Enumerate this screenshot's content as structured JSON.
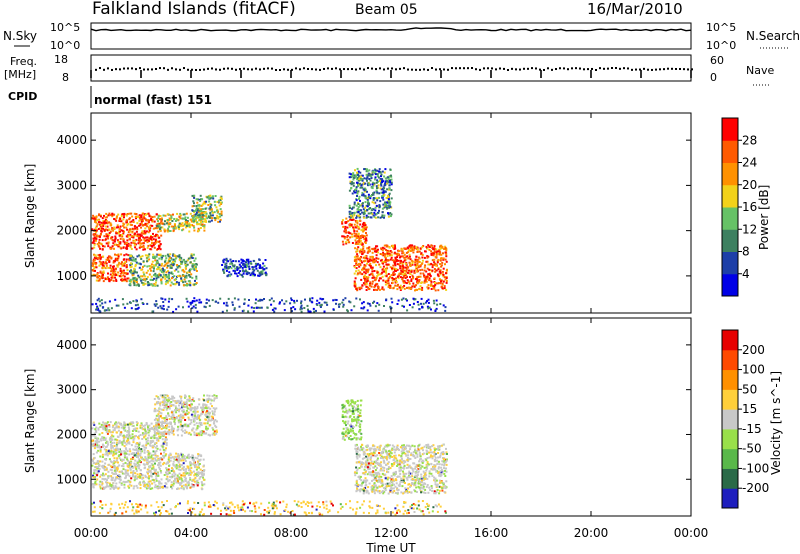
{
  "header": {
    "site": "Falkland Islands (fitACF)",
    "beam": "Beam 05",
    "date": "16/Mar/2010"
  },
  "top_panels": {
    "nsky_label": "N.Sky",
    "nsky_ticks": [
      "10^5",
      "10^0"
    ],
    "nsearch_label": "N.Search",
    "nsearch_ticks": [
      "10^5",
      "10^0"
    ],
    "freq_label_1": "Freq.",
    "freq_label_2": "[MHz]",
    "freq_ticks": [
      "18",
      "8"
    ],
    "nave_label": "Nave",
    "nave_ticks": [
      "60",
      "0"
    ],
    "cpid_label": "CPID",
    "cpid_text": "normal (fast) 151"
  },
  "chart_data": [
    {
      "type": "heatmap",
      "name": "power",
      "ylabel": "Slant Range [km]",
      "ylim": [
        180,
        4600
      ],
      "yticks": [
        1000,
        2000,
        3000,
        4000
      ],
      "xlim": [
        0,
        24
      ],
      "colorbar_label": "Power [dB]",
      "colorbar_ticks": [
        "4",
        "8",
        "12",
        "16",
        "20",
        "24",
        "28"
      ],
      "colors": [
        "#0000e6",
        "#1d3fa8",
        "#3d8060",
        "#66c266",
        "#f2d21a",
        "#ff9100",
        "#ff5a00",
        "#ff0000"
      ],
      "regions": [
        {
          "t": [
            0.0,
            2.8
          ],
          "r": [
            1600,
            2400
          ],
          "level": 6
        },
        {
          "t": [
            0.0,
            1.5
          ],
          "r": [
            900,
            1500
          ],
          "level": 6
        },
        {
          "t": [
            1.5,
            4.2
          ],
          "r": [
            800,
            1500
          ],
          "level": 3
        },
        {
          "t": [
            2.6,
            4.5
          ],
          "r": [
            2000,
            2400
          ],
          "level": 4
        },
        {
          "t": [
            4.0,
            5.2
          ],
          "r": [
            2200,
            2800
          ],
          "level": 3
        },
        {
          "t": [
            5.2,
            7.0
          ],
          "r": [
            1000,
            1400
          ],
          "level": 1
        },
        {
          "t": [
            10.0,
            11.0
          ],
          "r": [
            1700,
            2300
          ],
          "level": 6
        },
        {
          "t": [
            10.5,
            14.2
          ],
          "r": [
            700,
            1700
          ],
          "level": 6
        },
        {
          "t": [
            10.3,
            12.0
          ],
          "r": [
            2300,
            3400
          ],
          "level": 2
        }
      ]
    },
    {
      "type": "heatmap",
      "name": "velocity",
      "ylabel": "Slant Range [km]",
      "ylim": [
        180,
        4600
      ],
      "yticks": [
        1000,
        2000,
        3000,
        4000
      ],
      "xlim": [
        0,
        24
      ],
      "colorbar_label": "Velocity [m s^-1]",
      "colorbar_ticks": [
        "200",
        "100",
        "50",
        "15",
        "-15",
        "-50",
        "-100",
        "-200"
      ],
      "colors": [
        "#1f1fbe",
        "#2a6a48",
        "#59b84a",
        "#99e04a",
        "#c8c8c8",
        "#ffcf3a",
        "#ff9000",
        "#ff4a00",
        "#e60000"
      ],
      "regions": [
        {
          "t": [
            0.0,
            3.0
          ],
          "r": [
            1600,
            2300
          ],
          "level": 4
        },
        {
          "t": [
            0.0,
            4.5
          ],
          "r": [
            800,
            1600
          ],
          "level": 4
        },
        {
          "t": [
            2.5,
            5.0
          ],
          "r": [
            2000,
            2900
          ],
          "level": 4
        },
        {
          "t": [
            10.0,
            10.8
          ],
          "r": [
            1900,
            2800
          ],
          "level": 3
        },
        {
          "t": [
            10.5,
            14.2
          ],
          "r": [
            700,
            1800
          ],
          "level": 4
        }
      ]
    }
  ],
  "x_axis": {
    "ticks": [
      "00:00",
      "04:00",
      "08:00",
      "12:00",
      "16:00",
      "20:00",
      "00:00"
    ],
    "label": "Time UT"
  }
}
